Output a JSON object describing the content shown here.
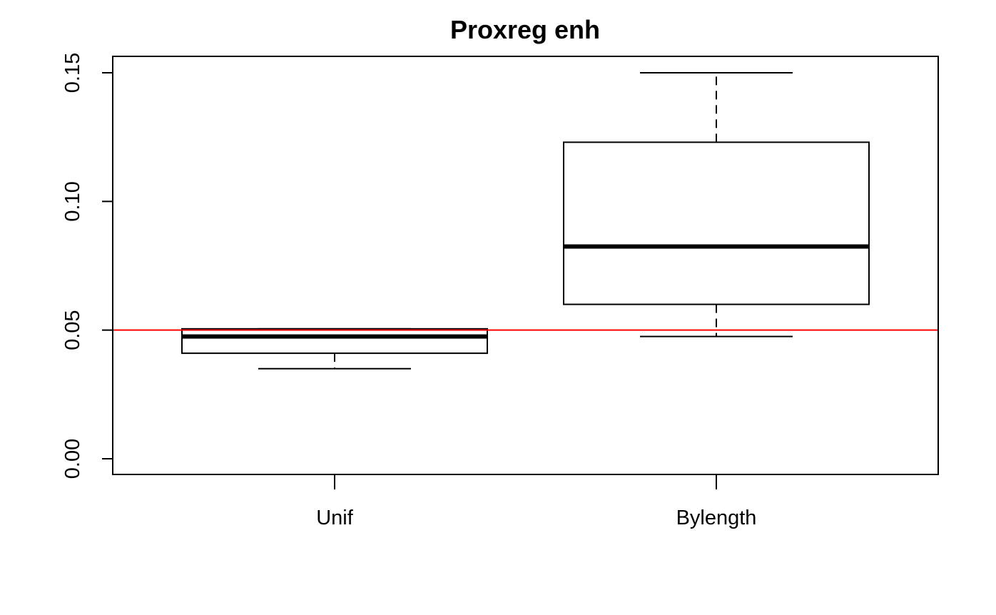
{
  "chart_data": {
    "type": "boxplot",
    "title": "Proxreg enh",
    "xlabel": "",
    "ylabel": "",
    "categories": [
      "Unif",
      "Bylength"
    ],
    "boxes": [
      {
        "category": "Unif",
        "whisker_low": 0.035,
        "q1": 0.041,
        "median": 0.0475,
        "q3": 0.0505,
        "whisker_high": 0.0505
      },
      {
        "category": "Bylength",
        "whisker_low": 0.0475,
        "q1": 0.06,
        "median": 0.0825,
        "q3": 0.123,
        "whisker_high": 0.15
      }
    ],
    "y_ticks": [
      "0.00",
      "0.05",
      "0.10",
      "0.15"
    ],
    "ylim": [
      0.0,
      0.15
    ],
    "reference_line": {
      "y": 0.05,
      "color": "#ff0000"
    },
    "grid": false,
    "legend": "none"
  }
}
